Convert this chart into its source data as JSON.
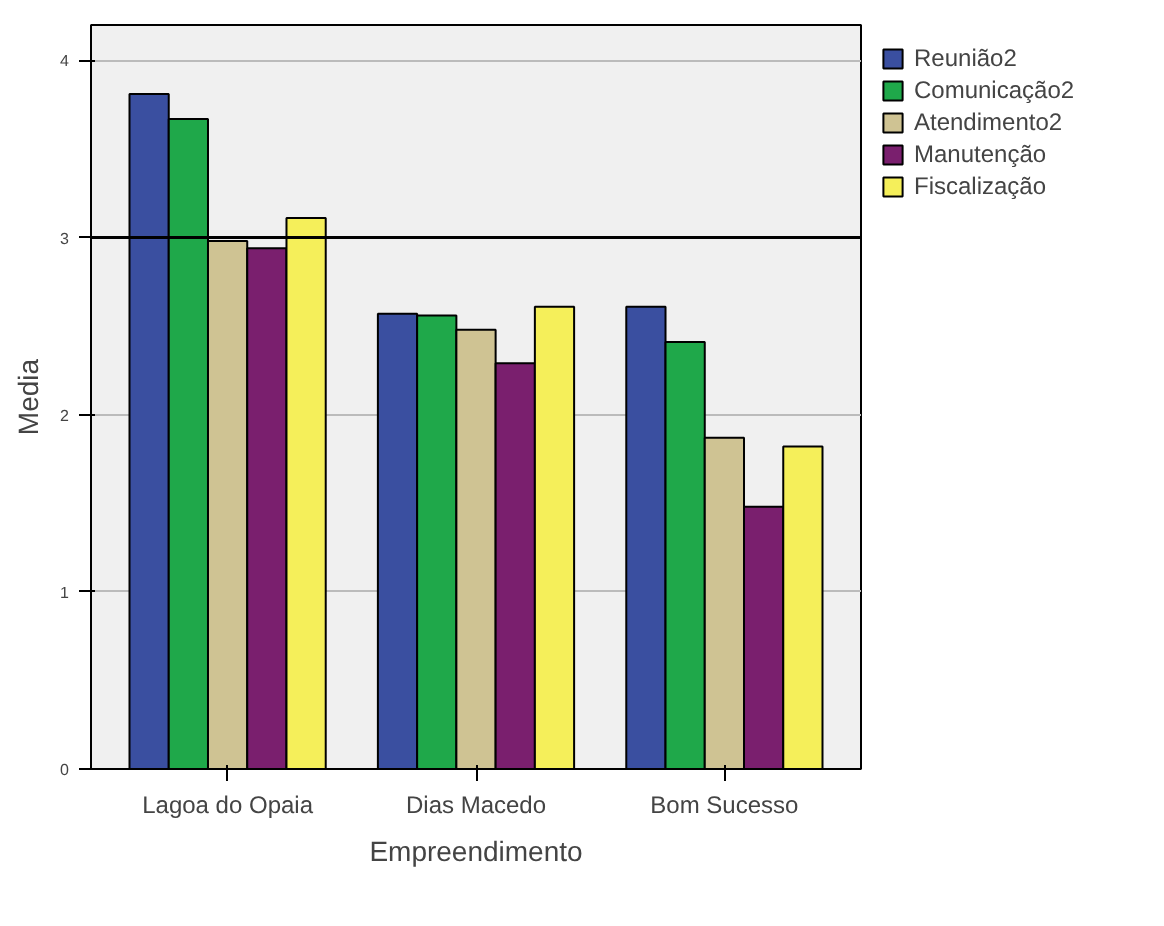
{
  "chart_data": {
    "type": "bar",
    "xlabel": "Empreendimento",
    "ylabel": "Media",
    "categories": [
      "Lagoa do Opaia",
      "Dias Macedo",
      "Bom Sucesso"
    ],
    "series": [
      {
        "name": "Reunião2",
        "color": "#3a4fa0",
        "values": [
          3.81,
          2.57,
          2.61
        ]
      },
      {
        "name": "Comunicação2",
        "color": "#1fa84a",
        "values": [
          3.67,
          2.56,
          2.41
        ]
      },
      {
        "name": "Atendimento2",
        "color": "#cfc393",
        "values": [
          2.98,
          2.48,
          1.87
        ]
      },
      {
        "name": "Manutenção",
        "color": "#7a1f6e",
        "values": [
          2.94,
          2.29,
          1.48
        ]
      },
      {
        "name": "Fiscalização",
        "color": "#f5ef5a",
        "values": [
          3.11,
          2.61,
          1.82
        ]
      }
    ],
    "ylim": [
      0,
      4.2
    ],
    "yticks": [
      0,
      1,
      2,
      3,
      4
    ],
    "grid": "y",
    "legend": "top right",
    "ref_lines": [
      {
        "axis": "y",
        "value": 3,
        "color": "#000000"
      }
    ]
  }
}
